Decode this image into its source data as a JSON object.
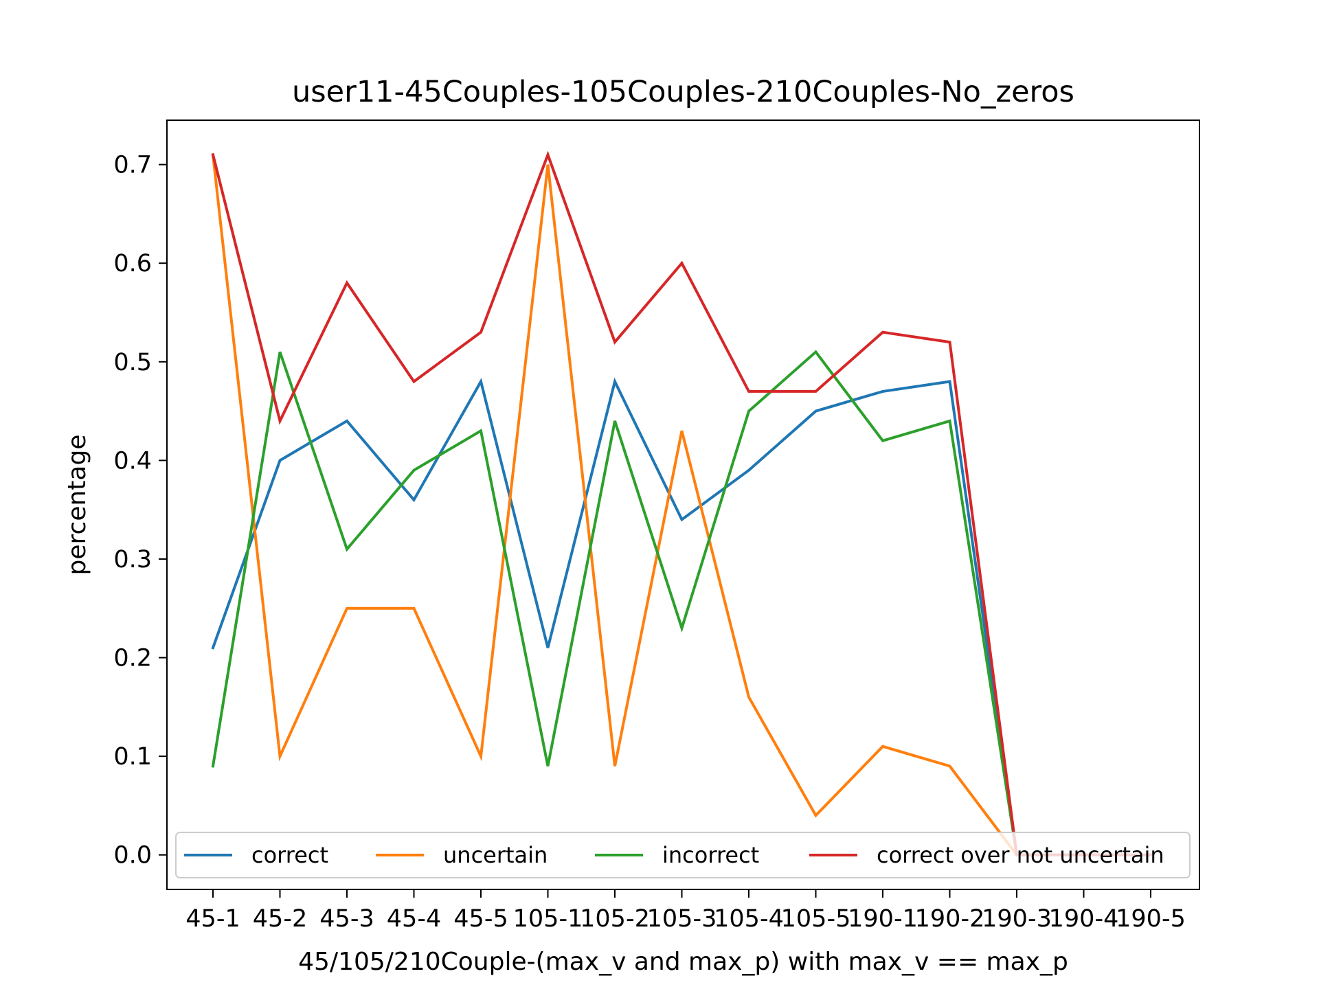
{
  "chart_data": {
    "type": "line",
    "title": "user11-45Couples-105Couples-210Couples-No_zeros",
    "xlabel": "45/105/210Couple-(max_v and max_p) with max_v == max_p",
    "ylabel": "percentage",
    "categories": [
      "45-1",
      "45-2",
      "45-3",
      "45-4",
      "45-5",
      "105-1",
      "105-2",
      "105-3",
      "105-4",
      "105-5",
      "190-1",
      "190-2",
      "190-3",
      "190-4",
      "190-5"
    ],
    "ylim": [
      -0.035,
      0.745
    ],
    "yticks": [
      "0.0",
      "0.1",
      "0.2",
      "0.3",
      "0.4",
      "0.5",
      "0.6",
      "0.7"
    ],
    "legend_position": "lower center",
    "grid": false,
    "series": [
      {
        "name": "correct",
        "color": "#1f77b4",
        "values": [
          0.21,
          0.4,
          0.44,
          0.36,
          0.48,
          0.21,
          0.48,
          0.34,
          0.39,
          0.45,
          0.47,
          0.48,
          0.0,
          0.0,
          0.0
        ]
      },
      {
        "name": "uncertain",
        "color": "#ff7f0e",
        "values": [
          0.71,
          0.1,
          0.25,
          0.25,
          0.1,
          0.7,
          0.09,
          0.43,
          0.16,
          0.04,
          0.11,
          0.09,
          0.0,
          0.0,
          0.0
        ]
      },
      {
        "name": "incorrect",
        "color": "#2ca02c",
        "values": [
          0.09,
          0.51,
          0.31,
          0.39,
          0.43,
          0.09,
          0.44,
          0.23,
          0.45,
          0.51,
          0.42,
          0.44,
          0.0,
          0.0,
          0.0
        ]
      },
      {
        "name": "correct over not uncertain",
        "color": "#d62728",
        "values": [
          0.71,
          0.44,
          0.58,
          0.48,
          0.53,
          0.71,
          0.52,
          0.6,
          0.47,
          0.47,
          0.53,
          0.52,
          0.0,
          0.0,
          0.0
        ]
      }
    ]
  }
}
